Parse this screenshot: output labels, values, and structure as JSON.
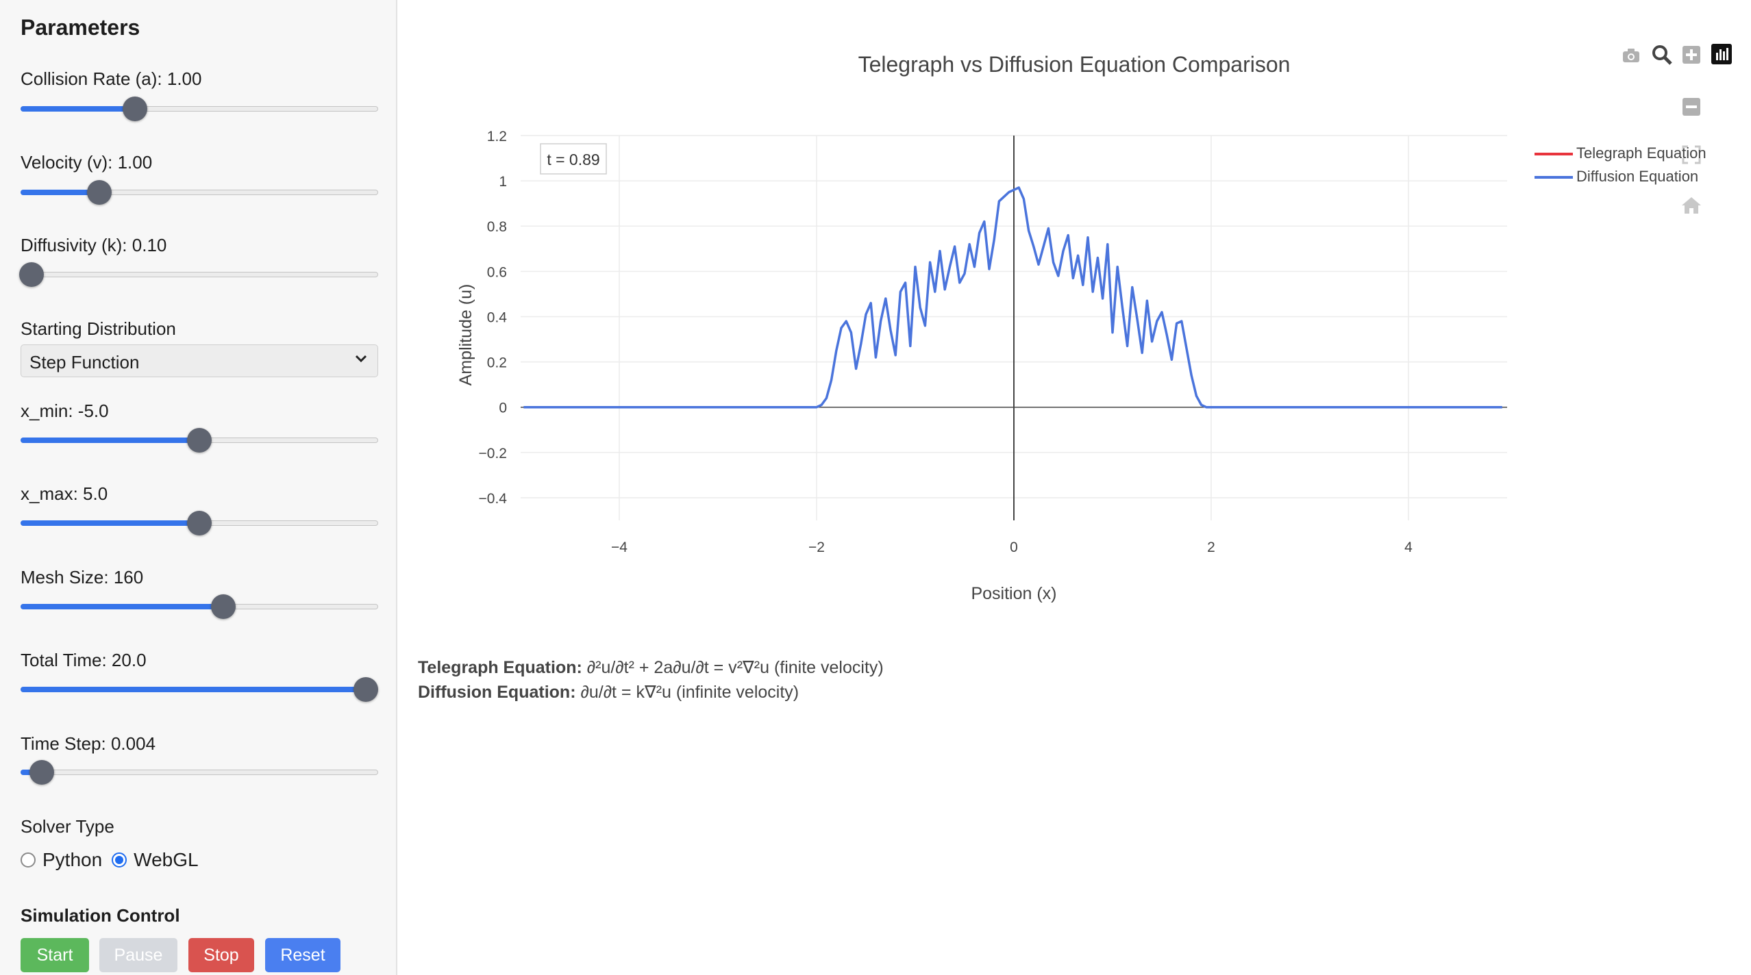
{
  "sidebar": {
    "title": "Parameters",
    "sliders": [
      {
        "label": "Collision Rate (a): 1.00",
        "fraction": 0.32
      },
      {
        "label": "Velocity (v): 1.00",
        "fraction": 0.22
      },
      {
        "label": "Diffusivity (k): 0.10",
        "fraction": 0.03
      },
      {
        "label": "x_min: -5.0",
        "fraction": 0.5
      },
      {
        "label": "x_max: 5.0",
        "fraction": 0.5
      },
      {
        "label": "Mesh Size: 160",
        "fraction": 0.567
      },
      {
        "label": "Total Time: 20.0",
        "fraction": 0.965
      },
      {
        "label": "Time Step: 0.004",
        "fraction": 0.06
      }
    ],
    "distribution_label": "Starting Distribution",
    "distribution_value": "Step Function",
    "solver_label": "Solver Type",
    "solver_options": [
      "Python",
      "WebGL"
    ],
    "solver_selected": "WebGL",
    "control_label": "Simulation Control",
    "buttons": {
      "start": "Start",
      "pause": "Pause",
      "stop": "Stop",
      "reset": "Reset"
    },
    "colors": {
      "start": "#5cb85c",
      "pause": "#d6d9de",
      "stop": "#d9534f",
      "reset": "#4a7ff0",
      "accent": "#3574ea"
    }
  },
  "toolbar_icons": [
    "camera-icon",
    "zoom-icon",
    "zoom-in-icon",
    "plotly-logo-icon",
    "zoom-out-icon",
    "autoscale-icon",
    "home-icon"
  ],
  "time_annotation": "t = 0.89",
  "equations": {
    "telegraph_label": "Telegraph Equation:",
    "telegraph_text": "∂²u/∂t² + 2a∂u/∂t = v²∇²u (finite velocity)",
    "diffusion_label": "Diffusion Equation:",
    "diffusion_text": "∂u/∂t = k∇²u (infinite velocity)"
  },
  "chart_data": {
    "type": "line",
    "title": "Telegraph vs Diffusion Equation Comparison",
    "xlabel": "Position (x)",
    "ylabel": "Amplitude (u)",
    "xlim": [
      -5,
      5
    ],
    "ylim": [
      -0.5,
      1.2
    ],
    "x_ticks": [
      -4,
      -2,
      0,
      2,
      4
    ],
    "x_tick_labels": [
      "−4",
      "−2",
      "0",
      "2",
      "4"
    ],
    "y_ticks": [
      1.2,
      1,
      0.8,
      0.6,
      0.4,
      0.2,
      0,
      -0.2,
      -0.4
    ],
    "y_tick_labels": [
      "1.2",
      "1",
      "0.8",
      "0.6",
      "0.4",
      "0.2",
      "0",
      "−0.2",
      "−0.4"
    ],
    "grid": true,
    "legend_position": "top-right",
    "series": [
      {
        "name": "Telegraph Equation",
        "color": "#e8333c",
        "x": [],
        "y": []
      },
      {
        "name": "Diffusion Equation",
        "color": "#4a74dc",
        "x": [
          -4.97,
          -2.0,
          -1.95,
          -1.9,
          -1.85,
          -1.8,
          -1.75,
          -1.7,
          -1.65,
          -1.6,
          -1.55,
          -1.5,
          -1.45,
          -1.4,
          -1.35,
          -1.3,
          -1.25,
          -1.2,
          -1.15,
          -1.1,
          -1.05,
          -1.0,
          -0.95,
          -0.9,
          -0.85,
          -0.8,
          -0.75,
          -0.7,
          -0.65,
          -0.6,
          -0.55,
          -0.5,
          -0.45,
          -0.4,
          -0.35,
          -0.3,
          -0.25,
          -0.2,
          -0.15,
          -0.1,
          -0.05,
          0.0,
          0.05,
          0.1,
          0.15,
          0.2,
          0.25,
          0.3,
          0.35,
          0.4,
          0.45,
          0.5,
          0.55,
          0.6,
          0.65,
          0.7,
          0.75,
          0.8,
          0.85,
          0.9,
          0.95,
          1.0,
          1.05,
          1.1,
          1.15,
          1.2,
          1.25,
          1.3,
          1.35,
          1.4,
          1.45,
          1.5,
          1.55,
          1.6,
          1.65,
          1.7,
          1.75,
          1.8,
          1.85,
          1.9,
          1.95,
          2.0,
          4.95
        ],
        "y": [
          0.0,
          0.0,
          0.01,
          0.04,
          0.12,
          0.25,
          0.35,
          0.38,
          0.33,
          0.17,
          0.28,
          0.41,
          0.46,
          0.22,
          0.38,
          0.48,
          0.34,
          0.23,
          0.51,
          0.55,
          0.27,
          0.62,
          0.44,
          0.36,
          0.64,
          0.51,
          0.69,
          0.52,
          0.62,
          0.71,
          0.55,
          0.59,
          0.72,
          0.62,
          0.77,
          0.82,
          0.61,
          0.74,
          0.91,
          0.93,
          0.95,
          0.96,
          0.97,
          0.92,
          0.78,
          0.71,
          0.63,
          0.71,
          0.79,
          0.64,
          0.58,
          0.69,
          0.76,
          0.57,
          0.67,
          0.54,
          0.75,
          0.51,
          0.66,
          0.48,
          0.72,
          0.33,
          0.62,
          0.44,
          0.27,
          0.53,
          0.39,
          0.24,
          0.47,
          0.29,
          0.38,
          0.42,
          0.32,
          0.21,
          0.37,
          0.38,
          0.26,
          0.14,
          0.05,
          0.01,
          0.0,
          0.0,
          0.0
        ]
      }
    ]
  }
}
